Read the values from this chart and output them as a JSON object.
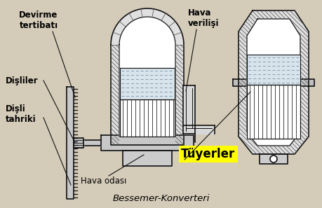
{
  "title": "Bessemer-Konverteri",
  "bg_color": "#d4cbb8",
  "label_devirme": "Devirme\ntertibatı",
  "label_disliler": "Dişliler",
  "label_disli_tahriki": "Dişli\ntahriki",
  "label_hava_verilisi": "Hava\nverilişi",
  "label_hava_odasi": "Hava odası",
  "label_tuyerler": "Tüyerler",
  "tuyerler_bg": "#ffff00",
  "line_color": "#111111"
}
